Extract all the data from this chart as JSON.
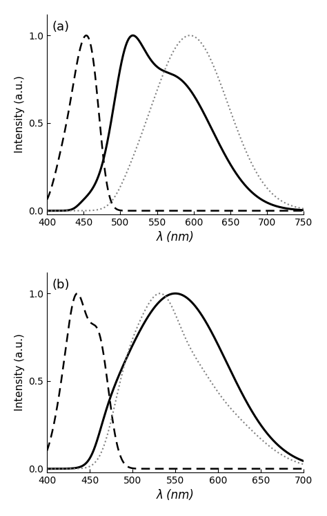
{
  "panel_a": {
    "xlim": [
      400,
      750
    ],
    "ylim": [
      -0.02,
      1.12
    ],
    "xticks": [
      400,
      450,
      500,
      550,
      600,
      650,
      700,
      750
    ],
    "yticks": [
      0.0,
      0.5,
      1.0
    ],
    "xlabel": "λ (nm)",
    "ylabel": "Intensity (a.u.)",
    "label": "(a)"
  },
  "panel_b": {
    "xlim": [
      400,
      700
    ],
    "ylim": [
      -0.02,
      1.12
    ],
    "xticks": [
      400,
      450,
      500,
      550,
      600,
      650,
      700
    ],
    "yticks": [
      0.0,
      0.5,
      1.0
    ],
    "xlabel": "λ (nm)",
    "ylabel": "Intensity (a.u.)",
    "label": "(b)"
  }
}
